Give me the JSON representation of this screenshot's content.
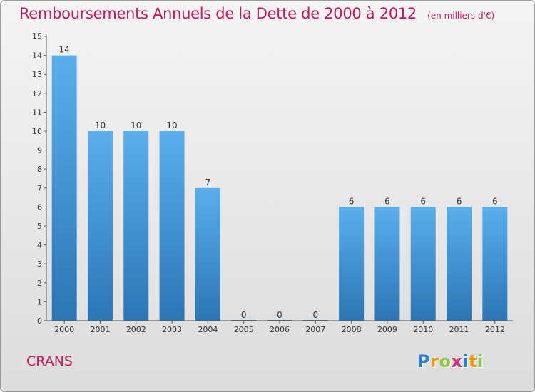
{
  "chart_data": {
    "type": "bar",
    "title": "Remboursements Annuels de la Dette de 2000 à 2012",
    "unit": "(en milliers d'€)",
    "categories": [
      "2000",
      "2001",
      "2002",
      "2003",
      "2004",
      "2005",
      "2006",
      "2007",
      "2008",
      "2009",
      "2010",
      "2011",
      "2012"
    ],
    "values": [
      14,
      10,
      10,
      10,
      7,
      0,
      0,
      0,
      6,
      6,
      6,
      6,
      6
    ],
    "ylim": [
      0,
      15
    ],
    "yticks": [
      0,
      1,
      2,
      3,
      4,
      5,
      6,
      7,
      8,
      9,
      10,
      11,
      12,
      13,
      14,
      15
    ],
    "xlabel": "",
    "ylabel": "",
    "grid": false,
    "bar_color": "#4a9fe0",
    "bar_color_dark": "#2b76b5"
  },
  "commune": "CRANS",
  "logo": {
    "letters": [
      "P",
      "r",
      "o",
      "x",
      "i",
      "t",
      "i"
    ],
    "colors": [
      "#2a7fd0",
      "#f29400",
      "#8cc63f",
      "#d62b7d",
      "#2a7fd0",
      "#f29400",
      "#8cc63f"
    ]
  },
  "colors": {
    "title": "#c2185b",
    "axis": "#333333"
  }
}
